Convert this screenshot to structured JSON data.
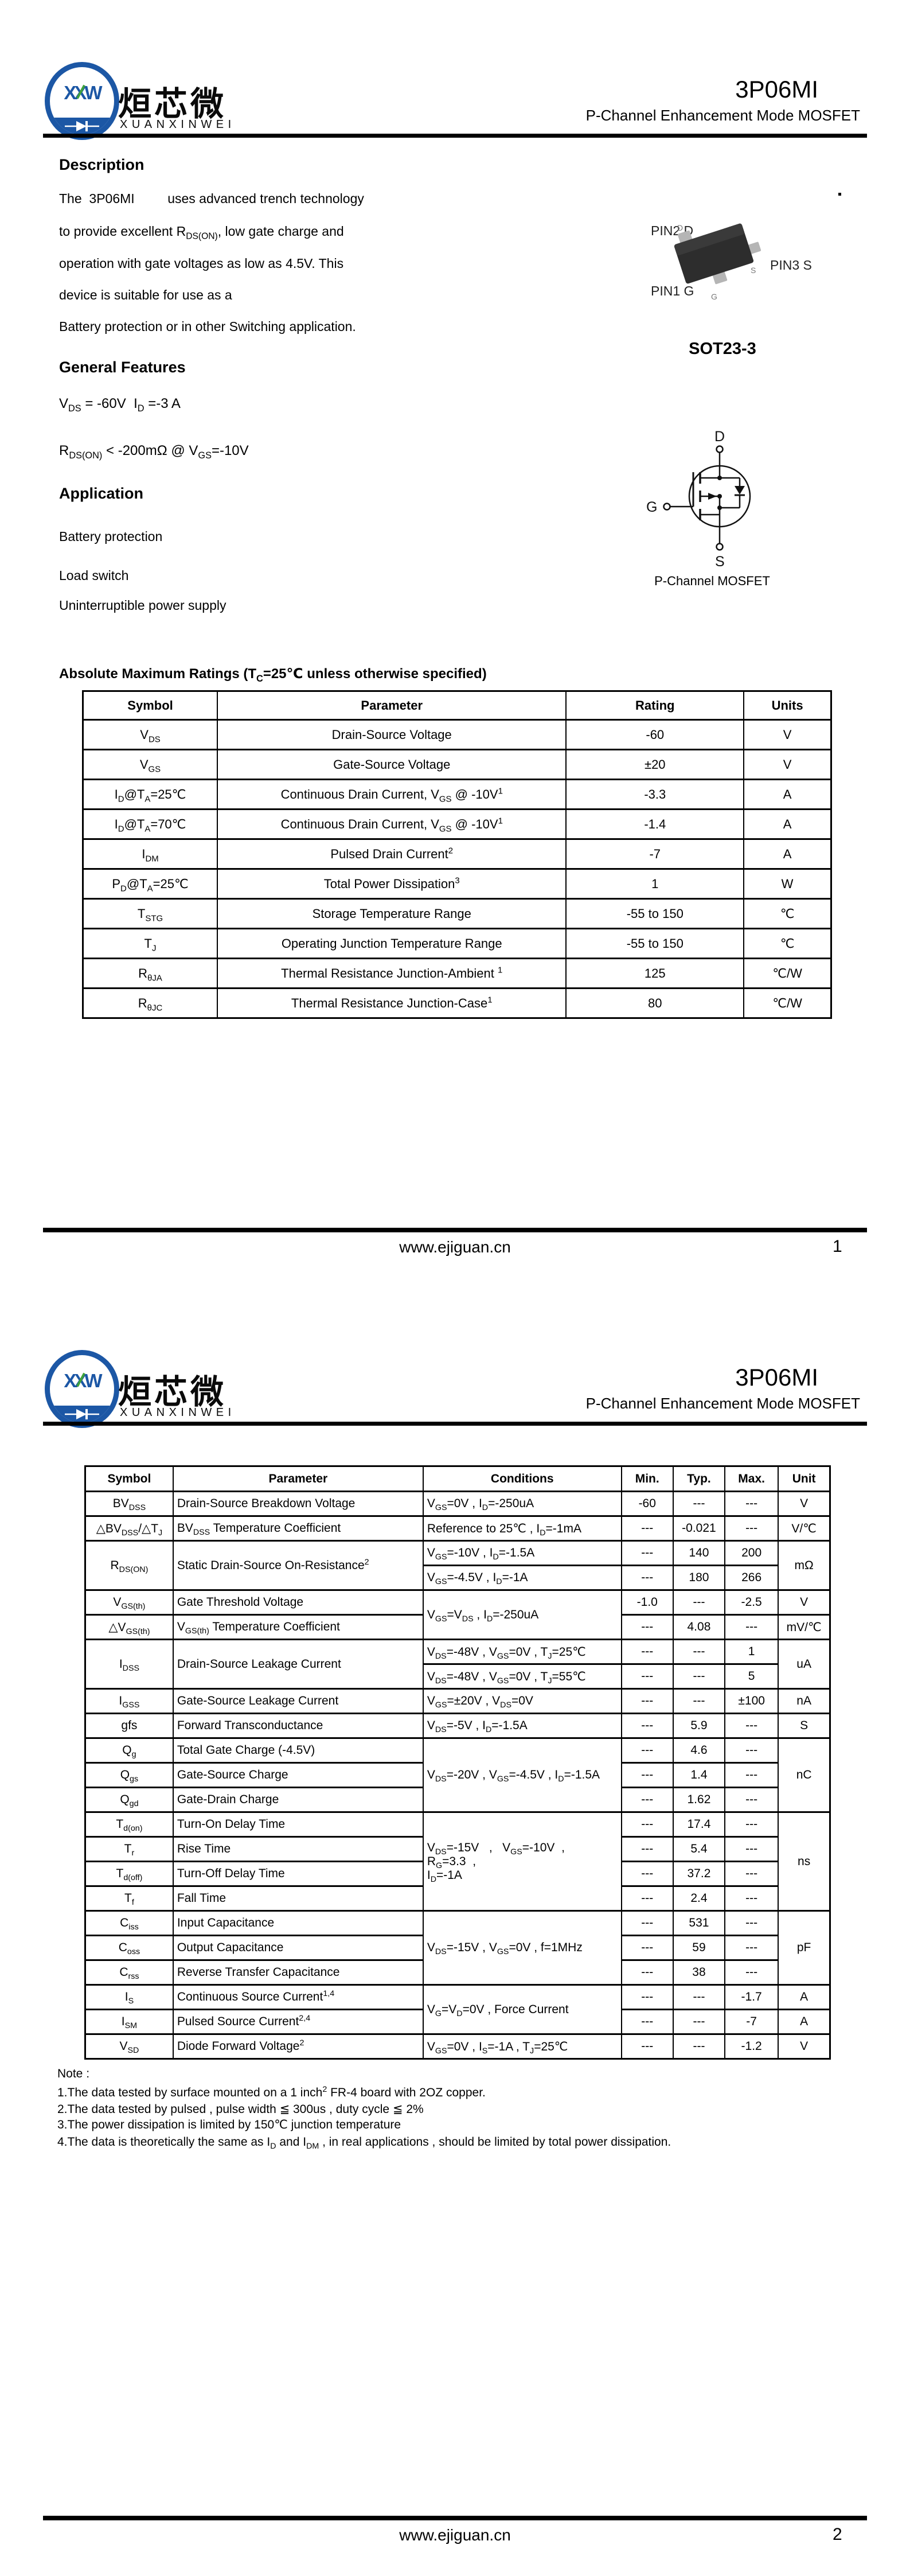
{
  "brand": {
    "xxw": "XXW",
    "cn": "烜芯微",
    "en": "XUANXINWEI"
  },
  "header": {
    "part": "3P06MI",
    "subtitle": "P-Channel Enhancement Mode MOSFET"
  },
  "footer": {
    "site": "www.ejiguan.cn",
    "page1": "1",
    "page2": "2"
  },
  "page1": {
    "description": {
      "heading": "Description",
      "lines": [
        "The&nbsp; 3P06MI&nbsp;&nbsp;&nbsp;&nbsp;&nbsp;&nbsp;&nbsp;&nbsp; uses advanced trench technology",
        "to provide excellent R<sub>DS(ON)</sub>, low gate charge and",
        "operation with gate voltages as low as 4.5V. This",
        "device is suitable for use as a",
        "Battery protection or in other Switching application."
      ]
    },
    "features": {
      "heading": "General Features",
      "lines": [
        "V<sub>DS</sub> = -60V&nbsp; I<sub>D</sub> =-3 A",
        "R<sub>DS(ON)</sub> &lt; -200mΩ @ V<sub>GS</sub>=-10V"
      ]
    },
    "application": {
      "heading": "Application",
      "items": [
        "Battery protection",
        "Load switch",
        "Uninterruptible power supply"
      ]
    },
    "package": {
      "pin2": "PIN2 D",
      "pin3": "PIN3 S",
      "pin1": "PIN1 G",
      "d": "D",
      "s": "S",
      "g": "G",
      "caption": "SOT23-3"
    },
    "symbol": {
      "d": "D",
      "g": "G",
      "s": "S",
      "caption": "P-Channel MOSFET"
    },
    "abs_max": {
      "heading": "Absolute Maximum Ratings (T<sub>C</sub>=25℃ unless otherwise specified)",
      "columns": [
        "Symbol",
        "Parameter",
        "Rating",
        "Units"
      ],
      "rows": [
        {
          "symbol": "V<sub>DS</sub>",
          "parameter": "Drain-Source Voltage",
          "rating": "-60",
          "units": "V"
        },
        {
          "symbol": "V<sub>GS</sub>",
          "parameter": "Gate-Source Voltage",
          "rating": "±20",
          "units": "V"
        },
        {
          "symbol": "I<sub>D</sub>@T<sub>A</sub>=25℃",
          "parameter": "Continuous Drain Current, V<sub>GS</sub> @ -10V<sup>1</sup>",
          "rating": "-3.3",
          "units": "A"
        },
        {
          "symbol": "I<sub>D</sub>@T<sub>A</sub>=70℃",
          "parameter": "Continuous Drain Current, V<sub>GS</sub> @ -10V<sup>1</sup>",
          "rating": "-1.4",
          "units": "A"
        },
        {
          "symbol": "I<sub>DM</sub>",
          "parameter": "Pulsed Drain Current<sup>2</sup>",
          "rating": "-7",
          "units": "A"
        },
        {
          "symbol": "P<sub>D</sub>@T<sub>A</sub>=25℃",
          "parameter": "Total Power Dissipation<sup>3</sup>",
          "rating": "1",
          "units": "W"
        },
        {
          "symbol": "T<sub>STG</sub>",
          "parameter": "Storage Temperature Range",
          "rating": "-55 to 150",
          "units": "℃"
        },
        {
          "symbol": "T<sub>J</sub>",
          "parameter": "Operating Junction Temperature Range",
          "rating": "-55 to 150",
          "units": "℃"
        },
        {
          "symbol": "R<sub>θJA</sub>",
          "parameter": "Thermal Resistance Junction-Ambient <sup>1</sup>",
          "rating": "125",
          "units": "℃/W"
        },
        {
          "symbol": "R<sub>θJC</sub>",
          "parameter": "Thermal Resistance Junction-Case<sup>1</sup>",
          "rating": "80",
          "units": "℃/W"
        }
      ]
    }
  },
  "page2": {
    "electrical": {
      "columns": [
        "Symbol",
        "Parameter",
        "Conditions",
        "Min.",
        "Typ.",
        "Max.",
        "Unit"
      ],
      "rows": [
        {
          "sym": "BV<sub>DSS</sub>",
          "par": "Drain-Source Breakdown Voltage",
          "cond": "V<sub>GS</sub>=0V , I<sub>D</sub>=-250uA",
          "min": "-60",
          "typ": "---",
          "max": "---",
          "unit": "V"
        },
        {
          "sym": "△BV<sub>DSS</sub>/△T<sub>J</sub>",
          "par": "BV<sub>DSS</sub> Temperature Coefficient",
          "cond": "Reference to 25℃ , I<sub>D</sub>=-1mA",
          "min": "---",
          "typ": "-0.021",
          "max": "---",
          "unit": "V/℃"
        },
        {
          "sym": "R<sub>DS(ON)</sub>",
          "par": "Static Drain-Source On-Resistance<sup>2</sup>",
          "cond": "V<sub>GS</sub>=-10V , I<sub>D</sub>=-1.5A",
          "min": "---",
          "typ": "140",
          "max": "200",
          "unit": "mΩ"
        },
        {
          "cond": "V<sub>GS</sub>=-4.5V , I<sub>D</sub>=-1A",
          "min": "---",
          "typ": "180",
          "max": "266"
        },
        {
          "sym": "V<sub>GS(th)</sub>",
          "par": "Gate Threshold Voltage",
          "cond": "V<sub>GS</sub>=V<sub>DS</sub> , I<sub>D</sub>=-250uA",
          "min": "-1.0",
          "typ": "---",
          "max": "-2.5",
          "unit": "V"
        },
        {
          "sym": "△V<sub>GS(th)</sub>",
          "par": "V<sub>GS(th)</sub> Temperature Coefficient",
          "min": "---",
          "typ": "4.08",
          "max": "---",
          "unit": "mV/℃"
        },
        {
          "sym": "I<sub>DSS</sub>",
          "par": "Drain-Source Leakage Current",
          "cond": "V<sub>DS</sub>=-48V , V<sub>GS</sub>=0V , T<sub>J</sub>=25℃",
          "min": "---",
          "typ": "---",
          "max": "1",
          "unit": "uA"
        },
        {
          "cond": "V<sub>DS</sub>=-48V , V<sub>GS</sub>=0V , T<sub>J</sub>=55℃",
          "min": "---",
          "typ": "---",
          "max": "5"
        },
        {
          "sym": "I<sub>GSS</sub>",
          "par": "Gate-Source Leakage Current",
          "cond": "V<sub>GS</sub>=±20V , V<sub>DS</sub>=0V",
          "min": "---",
          "typ": "---",
          "max": "±100",
          "unit": "nA"
        },
        {
          "sym": "gfs",
          "par": "Forward Transconductance",
          "cond": "V<sub>DS</sub>=-5V , I<sub>D</sub>=-1.5A",
          "min": "---",
          "typ": "5.9",
          "max": "---",
          "unit": "S"
        },
        {
          "sym": "Q<sub>g</sub>",
          "par": "Total Gate Charge (-4.5V)",
          "cond": "V<sub>DS</sub>=-20V , V<sub>GS</sub>=-4.5V , I<sub>D</sub>=-1.5A",
          "min": "---",
          "typ": "4.6",
          "max": "---",
          "unit": "nC"
        },
        {
          "sym": "Q<sub>gs</sub>",
          "par": "Gate-Source Charge",
          "min": "---",
          "typ": "1.4",
          "max": "---"
        },
        {
          "sym": "Q<sub>gd</sub>",
          "par": "Gate-Drain Charge",
          "min": "---",
          "typ": "1.62",
          "max": "---"
        },
        {
          "sym": "T<sub>d(on)</sub>",
          "par": "Turn-On Delay Time",
          "cond": "V<sub>DS</sub>=-15V&nbsp;&nbsp;&nbsp;,&nbsp;&nbsp;&nbsp;V<sub>GS</sub>=-10V&nbsp;&nbsp;,<br>R<sub>G</sub>=3.3&nbsp;&nbsp;,<br>I<sub>D</sub>=-1A",
          "min": "---",
          "typ": "17.4",
          "max": "---",
          "unit": "ns"
        },
        {
          "sym": "T<sub>r</sub>",
          "par": "Rise Time",
          "min": "---",
          "typ": "5.4",
          "max": "---"
        },
        {
          "sym": "T<sub>d(off)</sub>",
          "par": "Turn-Off Delay Time",
          "min": "---",
          "typ": "37.2",
          "max": "---"
        },
        {
          "sym": "T<sub>f</sub>",
          "par": "Fall Time",
          "min": "---",
          "typ": "2.4",
          "max": "---"
        },
        {
          "sym": "C<sub>iss</sub>",
          "par": "Input Capacitance",
          "cond": "V<sub>DS</sub>=-15V , V<sub>GS</sub>=0V , f=1MHz",
          "min": "---",
          "typ": "531",
          "max": "---",
          "unit": "pF"
        },
        {
          "sym": "C<sub>oss</sub>",
          "par": "Output Capacitance",
          "min": "---",
          "typ": "59",
          "max": "---"
        },
        {
          "sym": "C<sub>rss</sub>",
          "par": "Reverse Transfer Capacitance",
          "min": "---",
          "typ": "38",
          "max": "---"
        },
        {
          "sym": "I<sub>S</sub>",
          "par": "Continuous Source Current<sup>1,4</sup>",
          "cond": "V<sub>G</sub>=V<sub>D</sub>=0V , Force Current",
          "min": "---",
          "typ": "---",
          "max": "-1.7",
          "unit": "A"
        },
        {
          "sym": "I<sub>SM</sub>",
          "par": "Pulsed Source Current<sup>2,4</sup>",
          "min": "---",
          "typ": "---",
          "max": "-7",
          "unit": "A"
        },
        {
          "sym": "V<sub>SD</sub>",
          "par": "Diode Forward Voltage<sup>2</sup>",
          "cond": "V<sub>GS</sub>=0V , I<sub>S</sub>=-1A , T<sub>J</sub>=25℃",
          "min": "---",
          "typ": "---",
          "max": "-1.2",
          "unit": "V"
        }
      ]
    },
    "notes": {
      "heading": "Note :",
      "items": [
        "1.The data tested by surface mounted on a 1 inch<sup>2</sup> FR-4 board with 2OZ copper.",
        "2.The data tested by pulsed , pulse width ≦ 300us , duty cycle ≦ 2%",
        "3.The power dissipation is limited by 150℃  junction temperature",
        "4.The data is theoretically the same as I<sub>D</sub> and I<sub>DM</sub> , in real applications , should be limited by total power dissipation."
      ]
    }
  }
}
